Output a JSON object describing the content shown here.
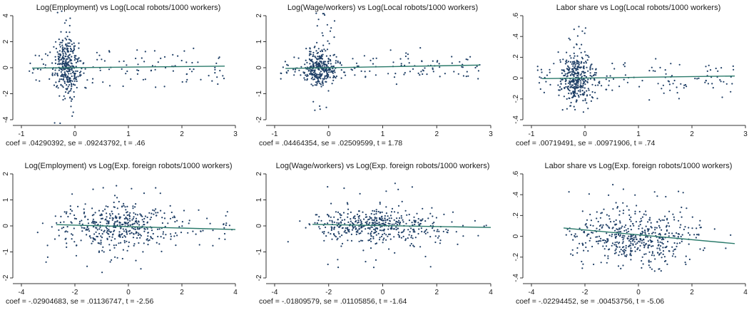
{
  "chart_data": [
    {
      "type": "scatter",
      "title": "Log(Employment) vs Log(Local robots/1000 workers)",
      "caption": "coef = .04290392, se = .09243792, t = .46",
      "xlim": [
        -1,
        3
      ],
      "ylim": [
        -4,
        4
      ],
      "xticks": [
        -1,
        0,
        1,
        2,
        3
      ],
      "yticks": [
        -4,
        -2,
        0,
        2,
        4
      ],
      "fit": {
        "x": [
          -0.8,
          2.8
        ],
        "y": [
          -0.03,
          0.12
        ]
      },
      "points": {
        "x_center": -0.15,
        "x_spread": 0.12,
        "x_tail": [
          -0.9,
          2.8
        ],
        "y_sd": 1.0,
        "y_spike": [
          -4.3,
          4.4
        ],
        "n_dense": 330,
        "n_tail": 120,
        "seed": 11
      }
    },
    {
      "type": "scatter",
      "title": "Log(Wage/workers) vs Log(Local robots/1000 workers)",
      "caption": "coef = .04464354, se = .02509599, t = 1.78",
      "xlim": [
        -1,
        3
      ],
      "ylim": [
        -2,
        2
      ],
      "xticks": [
        -1,
        0,
        1,
        2,
        3
      ],
      "yticks": [
        -2,
        -1,
        0,
        1,
        2
      ],
      "fit": {
        "x": [
          -0.8,
          2.8
        ],
        "y": [
          -0.03,
          0.1
        ]
      },
      "points": {
        "x_center": -0.15,
        "x_spread": 0.15,
        "x_tail": [
          -0.9,
          2.8
        ],
        "y_sd": 0.35,
        "y_spike": [
          -1.7,
          2.1
        ],
        "n_dense": 330,
        "n_tail": 130,
        "seed": 23
      }
    },
    {
      "type": "scatter",
      "title": "Labor share vs Log(Local robots/1000 workers)",
      "caption": "coef = .00719491, se = .00971906, t = .74",
      "xlim": [
        -1,
        3
      ],
      "ylim": [
        -0.4,
        0.6
      ],
      "xticks": [
        -1,
        0,
        1,
        2,
        3
      ],
      "yticks": [
        -0.4,
        -0.2,
        0,
        0.2,
        0.4,
        0.6
      ],
      "fit": {
        "x": [
          -0.8,
          2.8
        ],
        "y": [
          -0.005,
          0.02
        ]
      },
      "points": {
        "x_center": -0.15,
        "x_spread": 0.15,
        "x_tail": [
          -0.9,
          2.8
        ],
        "y_sd": 0.12,
        "y_spike": [
          -0.33,
          0.5
        ],
        "n_dense": 330,
        "n_tail": 130,
        "seed": 37
      }
    },
    {
      "type": "scatter",
      "title": "Log(Employment) vs Log(Exp. foreign robots/1000 workers)",
      "caption": "coef = -.02904683, se = .01136747, t = -2.56",
      "xlim": [
        -4,
        4
      ],
      "ylim": [
        -2,
        2
      ],
      "xticks": [
        -4,
        -2,
        0,
        2,
        4
      ],
      "yticks": [
        -2,
        -1,
        0,
        1,
        2
      ],
      "fit": {
        "x": [
          -2.7,
          4.0
        ],
        "y": [
          0.05,
          -0.14
        ]
      },
      "points": {
        "x_center": -0.3,
        "x_spread": 1.1,
        "x_tail": [
          -2.7,
          3.9
        ],
        "y_sd": 0.4,
        "y_spike": [
          -1.8,
          1.6
        ],
        "n_dense": 420,
        "n_tail": 60,
        "seed": 53
      }
    },
    {
      "type": "scatter",
      "title": "Log(Wage/workers) vs Log(Exp. foreign robots/1000 workers)",
      "caption": "coef = -.01809579, se = .01105856, t = -1.64",
      "xlim": [
        -4,
        4
      ],
      "ylim": [
        -2,
        2
      ],
      "xticks": [
        -4,
        -2,
        0,
        2,
        4
      ],
      "yticks": [
        -2,
        -1,
        0,
        1,
        2
      ],
      "fit": {
        "x": [
          -2.6,
          4.0
        ],
        "y": [
          0.06,
          -0.06
        ]
      },
      "points": {
        "x_center": -0.2,
        "x_spread": 1.1,
        "x_tail": [
          -2.6,
          3.9
        ],
        "y_sd": 0.32,
        "y_spike": [
          -1.7,
          1.7
        ],
        "n_dense": 420,
        "n_tail": 60,
        "seed": 71
      }
    },
    {
      "type": "scatter",
      "title": "Labor share vs Log(Exp. foreign robots/1000 workers)",
      "caption": "coef = -.02294452, se = .00453756, t = -5.06",
      "xlim": [
        -4,
        4
      ],
      "ylim": [
        -0.4,
        0.6
      ],
      "xticks": [
        -4,
        -2,
        0,
        2,
        4
      ],
      "yticks": [
        -0.4,
        -0.2,
        0,
        0.2,
        0.4,
        0.6
      ],
      "fit": {
        "x": [
          -2.8,
          3.6
        ],
        "y": [
          0.08,
          -0.07
        ]
      },
      "points": {
        "x_center": -0.2,
        "x_spread": 1.1,
        "x_tail": [
          -2.8,
          3.6
        ],
        "y_sd": 0.13,
        "y_spike": [
          -0.35,
          0.5
        ],
        "n_dense": 440,
        "n_tail": 60,
        "seed": 89
      }
    }
  ],
  "colors": {
    "points": "#1f3f66",
    "fit": "#2a7a6a",
    "axis": "#333333"
  }
}
